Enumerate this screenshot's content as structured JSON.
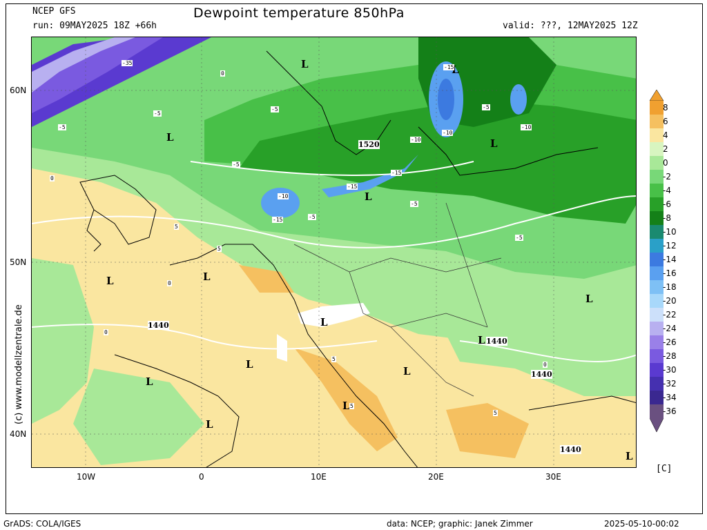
{
  "header": {
    "model": "NCEP GFS",
    "run": "run: 09MAY2025 18Z +66h",
    "title": "Dewpoint temperature 850hPa",
    "valid": "valid: ???, 12MAY2025 12Z"
  },
  "axes": {
    "lat_labels": [
      "60N",
      "50N",
      "40N"
    ],
    "lon_labels": [
      "10W",
      "0",
      "10E",
      "20E",
      "30E"
    ]
  },
  "watermark": "(c) www.modellzentrale.de",
  "legend": {
    "unit": "[C]",
    "ticks": [
      "8",
      "6",
      "4",
      "2",
      "0",
      "-2",
      "-4",
      "-6",
      "-8",
      "-10",
      "-12",
      "-14",
      "-16",
      "-18",
      "-20",
      "-22",
      "-24",
      "-26",
      "-28",
      "-30",
      "-32",
      "-34",
      "-36"
    ],
    "colors": [
      "#f0a030",
      "#f5c060",
      "#fae6a0",
      "#d8f5c0",
      "#a8e898",
      "#78d878",
      "#48c048",
      "#28a028",
      "#148018",
      "#1a8a70",
      "#2aa0c8",
      "#3c7ae0",
      "#5aa0f0",
      "#7ec0f5",
      "#a8d8fa",
      "#cce0fa",
      "#b8b0f0",
      "#9a80e8",
      "#7a5ae0",
      "#5a3ad0",
      "#4530b0",
      "#3a2890",
      "#6a5080"
    ]
  },
  "map_labels": {
    "lows": [
      "L",
      "L",
      "L",
      "L",
      "L",
      "L",
      "L",
      "L",
      "L",
      "L",
      "L",
      "L",
      "L",
      "L",
      "L",
      "L"
    ],
    "heights": [
      "1520",
      "1440",
      "1440",
      "1440",
      "1440"
    ],
    "contours": [
      "-35",
      "-5",
      "-5",
      "-5",
      "-5",
      "-5",
      "-5",
      "-5",
      "-5",
      "-10",
      "-10",
      "-10",
      "-10",
      "-15",
      "-15",
      "-15",
      "-15",
      "0",
      "0",
      "0",
      "0",
      "0",
      "5",
      "5",
      "5",
      "5",
      "5"
    ]
  },
  "footer": {
    "left": "GrADS: COLA/IGES",
    "center": "data: NCEP; graphic: Janek Zimmer",
    "right": "2025-05-10-00:02"
  }
}
